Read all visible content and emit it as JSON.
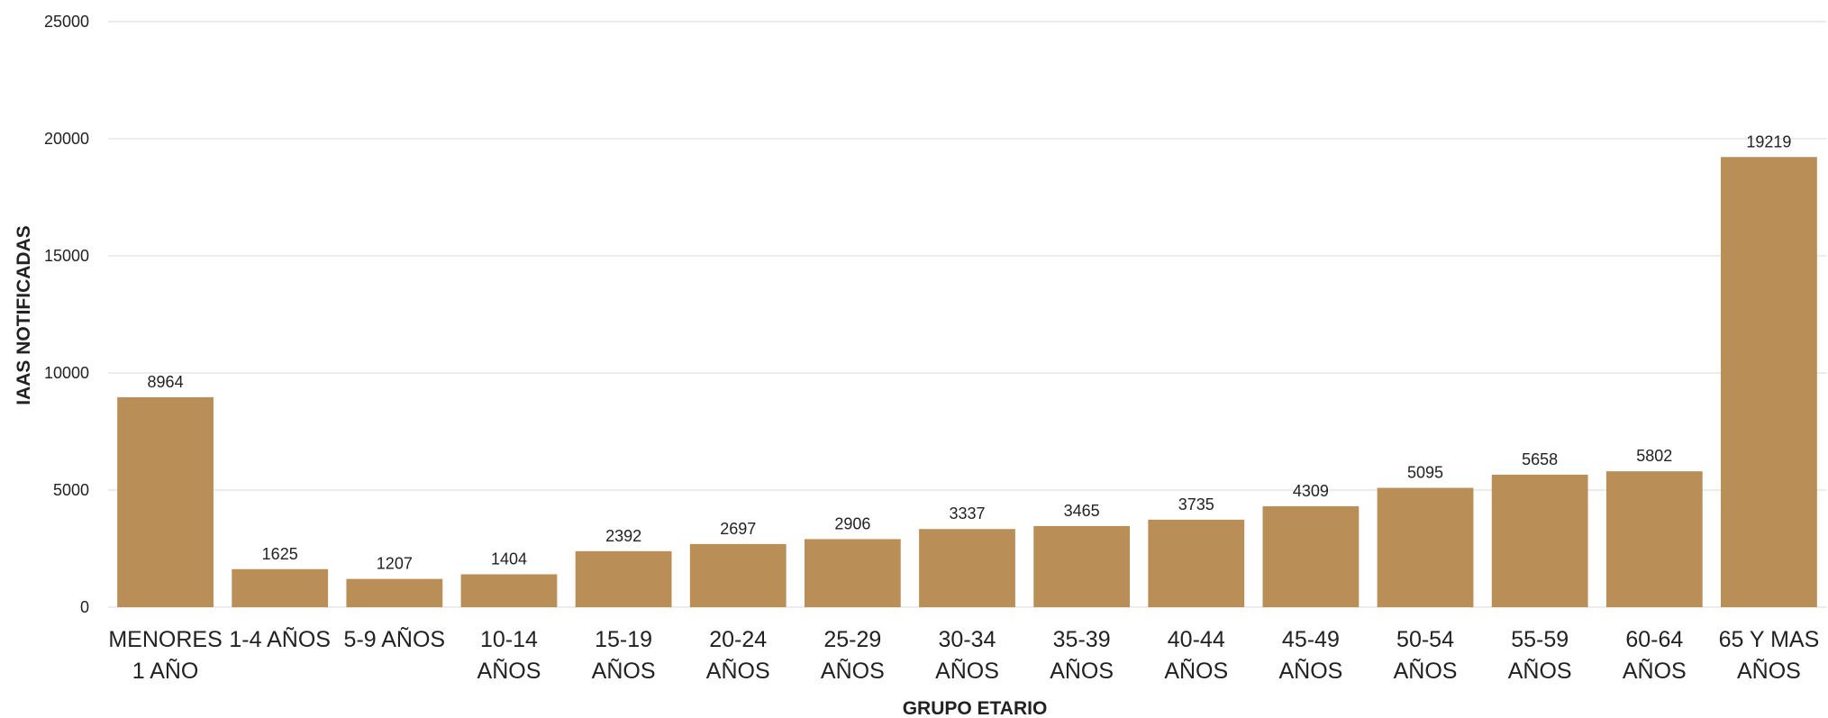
{
  "chart_data": {
    "type": "bar",
    "title": "",
    "xlabel": "GRUPO ETARIO",
    "ylabel": "IAAS NOTIFICADAS",
    "ylim": [
      0,
      25000
    ],
    "yticks": [
      0,
      5000,
      10000,
      15000,
      20000,
      25000
    ],
    "grid": true,
    "legend": "none",
    "bar_color": "#b98f57",
    "grid_color": "#e6e6e6",
    "categories": [
      [
        "MENORES",
        "1 AÑO"
      ],
      [
        "1-4 AÑOS"
      ],
      [
        "5-9 AÑOS"
      ],
      [
        "10-14",
        "AÑOS"
      ],
      [
        "15-19",
        "AÑOS"
      ],
      [
        "20-24",
        "AÑOS"
      ],
      [
        "25-29",
        "AÑOS"
      ],
      [
        "30-34",
        "AÑOS"
      ],
      [
        "35-39",
        "AÑOS"
      ],
      [
        "40-44",
        "AÑOS"
      ],
      [
        "45-49",
        "AÑOS"
      ],
      [
        "50-54",
        "AÑOS"
      ],
      [
        "55-59",
        "AÑOS"
      ],
      [
        "60-64",
        "AÑOS"
      ],
      [
        "65 Y MAS",
        "AÑOS"
      ]
    ],
    "values": [
      8964,
      1625,
      1207,
      1404,
      2392,
      2697,
      2906,
      3337,
      3465,
      3735,
      4309,
      5095,
      5658,
      5802,
      19219
    ],
    "data_labels": [
      "8964",
      "1625",
      "1207",
      "1404",
      "2392",
      "2697",
      "2906",
      "3337",
      "3465",
      "3735",
      "4309",
      "5095",
      "5658",
      "5802",
      "19219"
    ]
  }
}
